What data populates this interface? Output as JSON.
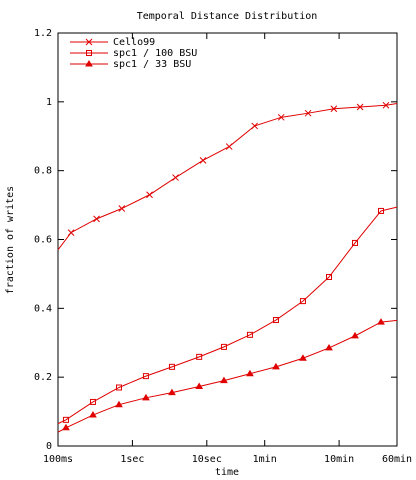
{
  "chart_data": {
    "type": "line",
    "title": "Temporal Distance Distribution",
    "xlabel": "time",
    "ylabel": "fraction of writes",
    "xscale": "log",
    "xlim": [
      0.1,
      3600
    ],
    "xticks": [
      {
        "value": 0.1,
        "label": "100ms"
      },
      {
        "value": 1,
        "label": "1sec"
      },
      {
        "value": 10,
        "label": "10sec"
      },
      {
        "value": 60,
        "label": "1min"
      },
      {
        "value": 600,
        "label": "10min"
      },
      {
        "value": 3600,
        "label": "60min"
      }
    ],
    "ylim": [
      0,
      1.2
    ],
    "yticks": [
      0,
      0.2,
      0.4,
      0.6,
      0.8,
      1,
      1.2
    ],
    "legend": "top-left",
    "series": [
      {
        "name": "Cello99",
        "color": "#e00000",
        "marker": "x",
        "x": [
          0.1,
          0.15,
          0.33,
          0.72,
          1.7,
          3.8,
          8.9,
          20,
          44,
          100,
          230,
          510,
          1150,
          2560,
          3600
        ],
        "values": [
          0.57,
          0.62,
          0.66,
          0.69,
          0.73,
          0.78,
          0.83,
          0.87,
          0.93,
          0.955,
          0.967,
          0.98,
          0.985,
          0.99,
          0.995
        ]
      },
      {
        "name": "spc1 / 100 BSU",
        "color": "#e00000",
        "marker": "square",
        "x": [
          0.1,
          0.128,
          0.295,
          0.66,
          1.52,
          3.4,
          7.9,
          17,
          38,
          85,
          196,
          439,
          982,
          2195,
          3600
        ],
        "values": [
          0.065,
          0.076,
          0.128,
          0.17,
          0.203,
          0.23,
          0.259,
          0.288,
          0.323,
          0.366,
          0.421,
          0.491,
          0.59,
          0.683,
          0.694
        ]
      },
      {
        "name": "spc1 / 33 BSU",
        "color": "#e00000",
        "marker": "triangle",
        "x": [
          0.1,
          0.128,
          0.295,
          0.66,
          1.52,
          3.4,
          7.9,
          17,
          38,
          85,
          196,
          439,
          982,
          2195,
          3600
        ],
        "values": [
          0.04,
          0.053,
          0.09,
          0.12,
          0.14,
          0.155,
          0.173,
          0.19,
          0.21,
          0.23,
          0.255,
          0.285,
          0.32,
          0.36,
          0.365
        ]
      }
    ]
  }
}
